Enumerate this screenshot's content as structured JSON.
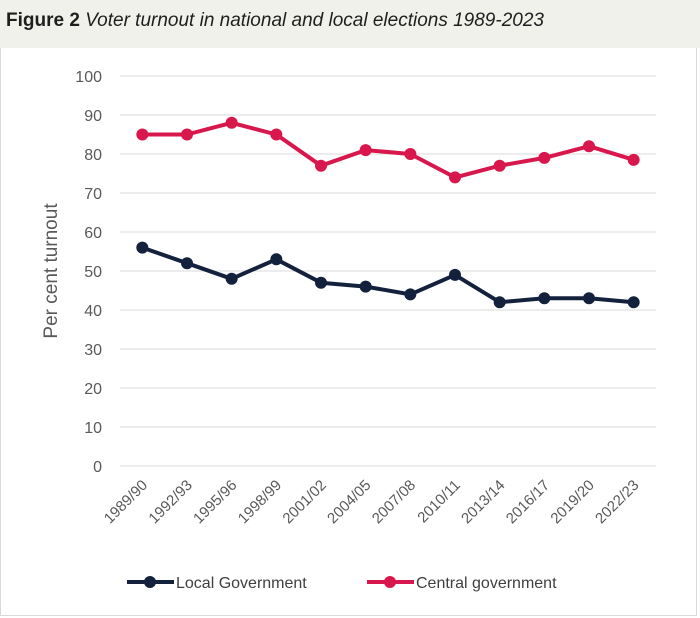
{
  "figure": {
    "label": "Figure 2",
    "title": "Voter turnout in national and local elections 1989-2023"
  },
  "chart_data": {
    "type": "line",
    "ylabel": "Per cent turnout",
    "xlabel": "",
    "ylim": [
      0,
      100
    ],
    "yticks": [
      0,
      10,
      20,
      30,
      40,
      50,
      60,
      70,
      80,
      90,
      100
    ],
    "grid": true,
    "legend_position": "bottom",
    "categories": [
      "1989/90",
      "1992/93",
      "1995/96",
      "1998/99",
      "2001/02",
      "2004/05",
      "2007/08",
      "2010/11",
      "2013/14",
      "2016/17",
      "2019/20",
      "2022/23"
    ],
    "series": [
      {
        "name": "Local Government",
        "color": "#14213d",
        "values": [
          56,
          52,
          48,
          53,
          47,
          46,
          44,
          49,
          42,
          43,
          43,
          42
        ]
      },
      {
        "name": "Central government",
        "color": "#d8174d",
        "values": [
          85,
          85,
          88,
          85,
          77,
          81,
          80,
          74,
          77,
          79,
          82,
          78.5
        ]
      }
    ]
  }
}
